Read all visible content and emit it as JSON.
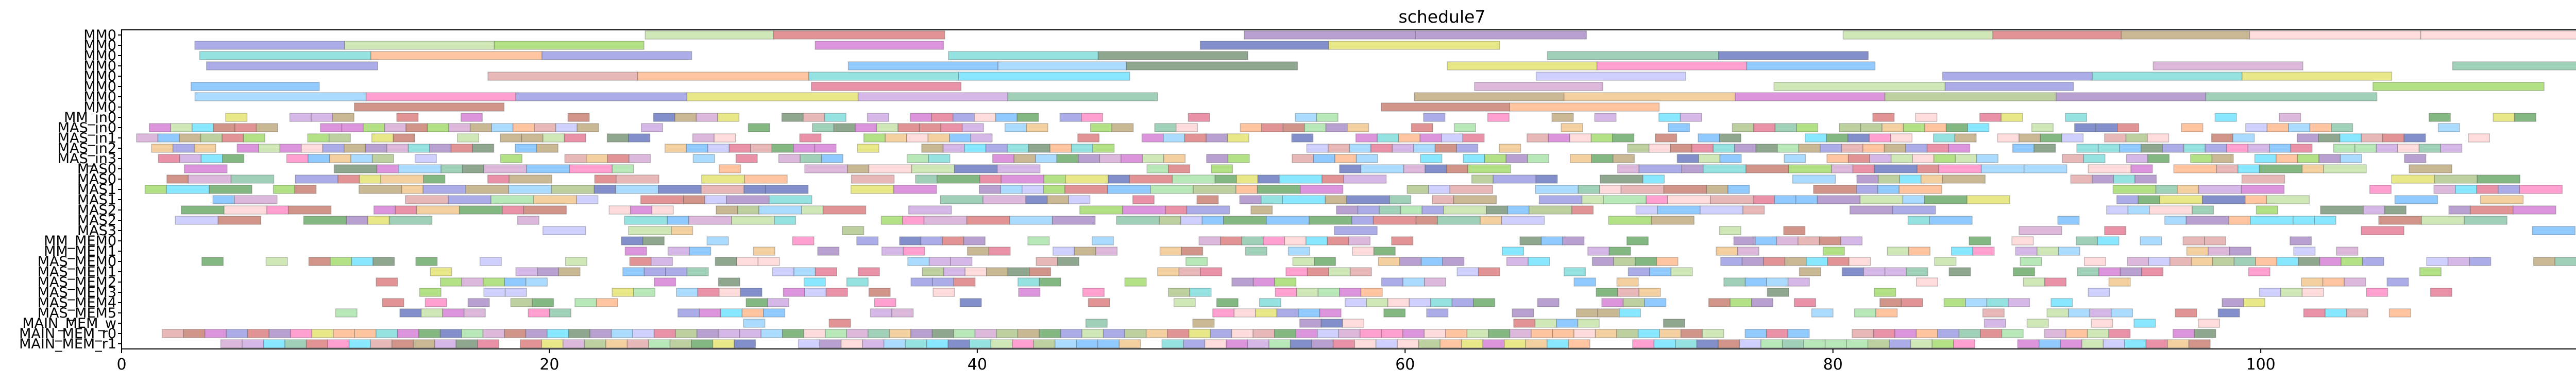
{
  "chart_data": {
    "type": "gantt",
    "title": "schedule7",
    "xlabel": "",
    "ylabel": "",
    "xlim": [
      0,
      117
    ],
    "xticks": [
      0,
      20,
      40,
      60,
      80,
      100
    ],
    "grid": false,
    "legend": "none",
    "rows": [
      "MM0",
      "MM0",
      "MM0",
      "MM0",
      "MM0",
      "MM0",
      "MM0",
      "MM0",
      "MM_in0",
      "MAS_in0",
      "MAS_in1",
      "MAS_in2",
      "MAS_in3",
      "MAS0",
      "MAS0",
      "MAS1",
      "MAS1",
      "MAS2",
      "MAS2",
      "MAS3",
      "MM_MEM0",
      "MM_MEM1",
      "MAS_MEM0",
      "MAS_MEM1",
      "MAS_MEM2",
      "MAS_MEM3",
      "MAS_MEM4",
      "MAS_MEM5",
      "MAIN_MEM_w",
      "MAIN_MEM_r0",
      "MAIN_MEM_r1"
    ],
    "seed": 7
  },
  "colors": {
    "palette": [
      "#a7c080",
      "#e06c8a",
      "#5aa05a",
      "#8fd0ff",
      "#d070d0",
      "#6bb8ff",
      "#c07060",
      "#9ad85e",
      "#c8a0e0",
      "#ffb080",
      "#6a8a6a",
      "#e0e060",
      "#d87070",
      "#a080c0",
      "#70d8d8",
      "#c0c0ff",
      "#ffd0d0",
      "#b8a070",
      "#ff80c0",
      "#80c0a0",
      "#5a6ab8",
      "#f0c080",
      "#a0e0a0",
      "#d0a0d0",
      "#9090e0",
      "#60e0ff",
      "#e0a0a0",
      "#c0e0a0"
    ]
  }
}
